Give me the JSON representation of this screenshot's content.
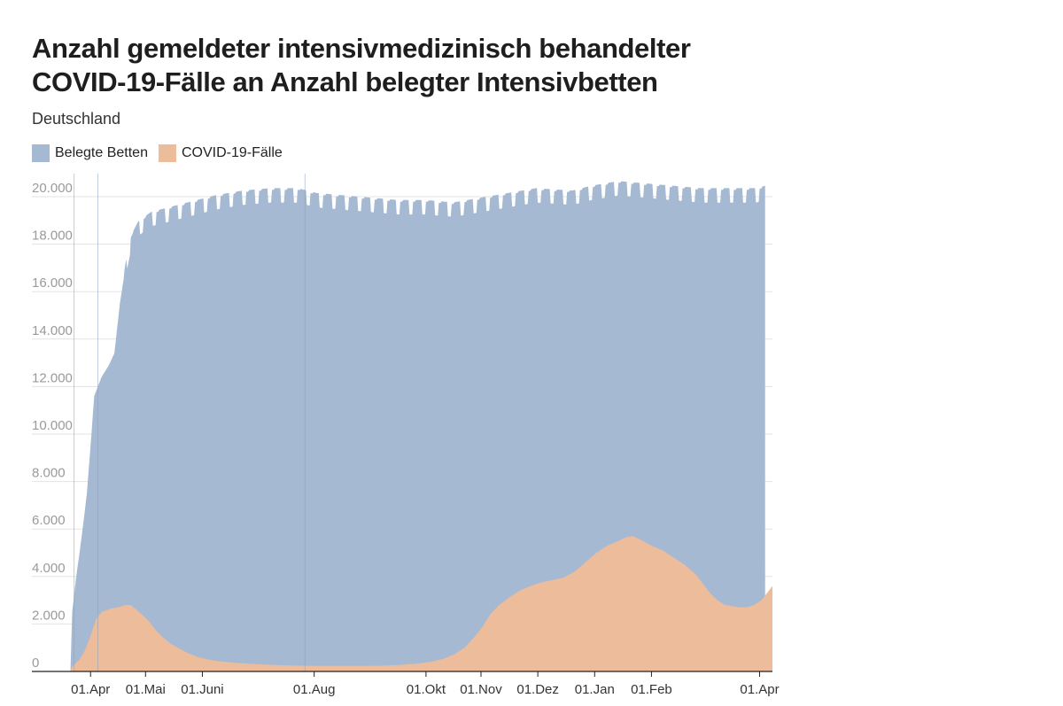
{
  "chart_data": {
    "type": "area",
    "title": "Anzahl gemeldeter intensivmedizinisch behandelter COVID-19-Fälle an Anzahl belegter Intensivbetten",
    "subtitle": "Deutschland",
    "xlabel": "",
    "ylabel": "",
    "ylim": [
      0,
      20000
    ],
    "grid": true,
    "legend_position": "top-left",
    "y_ticks": [
      {
        "value": 0,
        "label": "0"
      },
      {
        "value": 2000,
        "label": "2.000"
      },
      {
        "value": 4000,
        "label": "4.000"
      },
      {
        "value": 6000,
        "label": "6.000"
      },
      {
        "value": 8000,
        "label": "8.000"
      },
      {
        "value": 10000,
        "label": "10.000"
      },
      {
        "value": 12000,
        "label": "12.000"
      },
      {
        "value": 14000,
        "label": "14.000"
      },
      {
        "value": 16000,
        "label": "16.000"
      },
      {
        "value": 18000,
        "label": "18.000"
      },
      {
        "value": 20000,
        "label": "20.000"
      }
    ],
    "x_ticks": [
      {
        "day": 22,
        "label": "01.Apr"
      },
      {
        "day": 52,
        "label": "01.Mai"
      },
      {
        "day": 83,
        "label": "01.Juni"
      },
      {
        "day": 144,
        "label": "01.Aug"
      },
      {
        "day": 205,
        "label": "01.Okt"
      },
      {
        "day": 235,
        "label": "01.Nov"
      },
      {
        "day": 266,
        "label": "01.Dez"
      },
      {
        "day": 297,
        "label": "01.Jan"
      },
      {
        "day": 328,
        "label": "01.Feb"
      },
      {
        "day": 387,
        "label": "01.Apr"
      }
    ],
    "x_range_days": [
      -10,
      394
    ],
    "x_unit": "days since 2020-03-01",
    "reference_lines_days": [
      13,
      26,
      139
    ],
    "series": [
      {
        "name": "Belegte Betten",
        "color": "#a5b9d2",
        "weekly_amplitude": 900,
        "points": [
          [
            11,
            0
          ],
          [
            12,
            2500
          ],
          [
            14,
            3900
          ],
          [
            16,
            5000
          ],
          [
            18,
            6200
          ],
          [
            20,
            7500
          ],
          [
            22,
            9500
          ],
          [
            24,
            11600
          ],
          [
            26,
            12000
          ],
          [
            28,
            12400
          ],
          [
            32,
            12900
          ],
          [
            35,
            13400
          ],
          [
            38,
            15500
          ],
          [
            41,
            17000
          ],
          [
            44,
            18200
          ],
          [
            48,
            18800
          ],
          [
            55,
            19200
          ],
          [
            65,
            19400
          ],
          [
            75,
            19600
          ],
          [
            90,
            19900
          ],
          [
            105,
            20100
          ],
          [
            120,
            20200
          ],
          [
            135,
            20200
          ],
          [
            145,
            20000
          ],
          [
            160,
            19900
          ],
          [
            175,
            19800
          ],
          [
            190,
            19700
          ],
          [
            205,
            19700
          ],
          [
            220,
            19600
          ],
          [
            235,
            19800
          ],
          [
            250,
            20000
          ],
          [
            265,
            20200
          ],
          [
            285,
            20100
          ],
          [
            295,
            20300
          ],
          [
            310,
            20500
          ],
          [
            325,
            20400
          ],
          [
            340,
            20300
          ],
          [
            355,
            20200
          ],
          [
            370,
            20200
          ],
          [
            385,
            20200
          ],
          [
            390,
            20300
          ]
        ]
      },
      {
        "name": "COVID-19-Fälle",
        "color": "#edbc9a",
        "points": [
          [
            11,
            0
          ],
          [
            12,
            200
          ],
          [
            16,
            500
          ],
          [
            19,
            900
          ],
          [
            22,
            1500
          ],
          [
            25,
            2200
          ],
          [
            28,
            2500
          ],
          [
            33,
            2650
          ],
          [
            37,
            2700
          ],
          [
            41,
            2800
          ],
          [
            44,
            2800
          ],
          [
            47,
            2600
          ],
          [
            50,
            2400
          ],
          [
            54,
            2100
          ],
          [
            58,
            1700
          ],
          [
            62,
            1400
          ],
          [
            66,
            1150
          ],
          [
            70,
            980
          ],
          [
            75,
            780
          ],
          [
            80,
            620
          ],
          [
            85,
            520
          ],
          [
            90,
            450
          ],
          [
            100,
            370
          ],
          [
            110,
            320
          ],
          [
            120,
            280
          ],
          [
            130,
            250
          ],
          [
            140,
            240
          ],
          [
            150,
            230
          ],
          [
            160,
            230
          ],
          [
            170,
            235
          ],
          [
            180,
            240
          ],
          [
            190,
            270
          ],
          [
            200,
            330
          ],
          [
            207,
            400
          ],
          [
            214,
            520
          ],
          [
            220,
            700
          ],
          [
            226,
            1000
          ],
          [
            232,
            1500
          ],
          [
            236,
            1900
          ],
          [
            240,
            2400
          ],
          [
            245,
            2800
          ],
          [
            250,
            3100
          ],
          [
            256,
            3400
          ],
          [
            262,
            3600
          ],
          [
            268,
            3750
          ],
          [
            274,
            3850
          ],
          [
            280,
            3950
          ],
          [
            286,
            4200
          ],
          [
            292,
            4600
          ],
          [
            298,
            5000
          ],
          [
            304,
            5300
          ],
          [
            310,
            5500
          ],
          [
            314,
            5650
          ],
          [
            318,
            5700
          ],
          [
            322,
            5550
          ],
          [
            328,
            5300
          ],
          [
            334,
            5100
          ],
          [
            340,
            4800
          ],
          [
            346,
            4500
          ],
          [
            352,
            4100
          ],
          [
            356,
            3700
          ],
          [
            360,
            3300
          ],
          [
            364,
            3000
          ],
          [
            368,
            2800
          ],
          [
            372,
            2750
          ],
          [
            376,
            2700
          ],
          [
            380,
            2700
          ],
          [
            384,
            2800
          ],
          [
            388,
            3000
          ],
          [
            391,
            3300
          ],
          [
            394,
            3600
          ]
        ]
      }
    ]
  }
}
